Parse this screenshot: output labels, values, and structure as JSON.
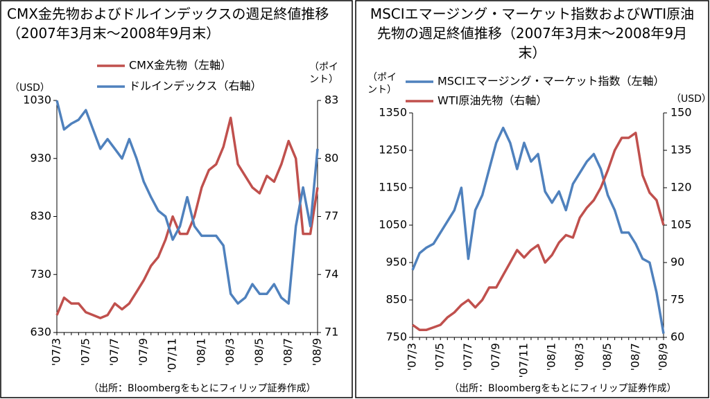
{
  "chart_data": [
    {
      "type": "line",
      "title": "CMX金先物およびドルインデックスの週足終値推移（2007年3月末～2008年9月末）",
      "y_label": "（USD）",
      "y2_label": "（ポイント）",
      "source": "（出所：Bloombergをもとにフィリップ証券作成）",
      "categories": [
        "'07/3",
        null,
        null,
        null,
        "'07/5",
        null,
        null,
        null,
        "'07/7",
        null,
        null,
        null,
        "'07/9",
        null,
        null,
        null,
        "'07/11",
        null,
        null,
        null,
        "'08/1",
        null,
        null,
        null,
        "'08/3",
        null,
        null,
        null,
        "'08/5",
        null,
        null,
        null,
        "'08/7",
        null,
        null,
        null,
        "'08/9"
      ],
      "series": [
        {
          "name": "CMX金先物（左軸）",
          "color": "#c0504d",
          "values": [
            660,
            690,
            680,
            680,
            665,
            660,
            655,
            660,
            680,
            670,
            680,
            700,
            720,
            745,
            760,
            790,
            830,
            800,
            800,
            830,
            880,
            910,
            920,
            950,
            1000,
            920,
            900,
            880,
            870,
            900,
            890,
            920,
            960,
            930,
            800,
            800,
            880
          ]
        },
        {
          "name": "ドルインデックス（右軸）",
          "color": "#4f81bd",
          "axis": "y2",
          "values": [
            83,
            81.5,
            81.8,
            82,
            82.5,
            81.5,
            80.5,
            81,
            80.5,
            80,
            81,
            80,
            78.8,
            78,
            77.3,
            77,
            75.8,
            76.5,
            78,
            76.5,
            76,
            76,
            76,
            75.5,
            73,
            72.5,
            72.8,
            73.5,
            73,
            73,
            73.5,
            72.8,
            72.5,
            76.5,
            78.5,
            76.5,
            80.5
          ]
        }
      ],
      "ylim": [
        630,
        1030
      ],
      "yticks": [
        630,
        730,
        830,
        930,
        1030
      ],
      "y2lim": [
        71,
        83
      ],
      "y2ticks": [
        71,
        74,
        77,
        80,
        83
      ]
    },
    {
      "type": "line",
      "title": "MSCIエマージング・マーケット指数およびWTI原油先物の週足終値推移（2007年3月末～2008年9月末）",
      "y_label": "（ポイント）",
      "y2_label": "（USD）",
      "source": "（出所：Bloombergをもとにフィリップ証券作成）",
      "categories": [
        "'07/3",
        null,
        null,
        null,
        "'07/5",
        null,
        null,
        null,
        "'07/7",
        null,
        null,
        null,
        "'07/9",
        null,
        null,
        null,
        "'07/11",
        null,
        null,
        null,
        "'08/1",
        null,
        null,
        null,
        "'08/3",
        null,
        null,
        null,
        "'08/5",
        null,
        null,
        null,
        "'08/7",
        null,
        null,
        null,
        "'08/9"
      ],
      "series": [
        {
          "name": "MSCIエマージング・マーケット指数（左軸）",
          "color": "#4f81bd",
          "values": [
            930,
            975,
            990,
            1000,
            1030,
            1060,
            1090,
            1150,
            960,
            1090,
            1130,
            1200,
            1270,
            1310,
            1270,
            1200,
            1270,
            1220,
            1240,
            1140,
            1110,
            1140,
            1090,
            1160,
            1190,
            1220,
            1240,
            1200,
            1130,
            1090,
            1030,
            1030,
            1000,
            960,
            950,
            870,
            760
          ]
        },
        {
          "name": "WTI原油先物（右軸）",
          "color": "#c0504d",
          "axis": "y2",
          "values": [
            65,
            63,
            63,
            64,
            65,
            68,
            70,
            73,
            75,
            72,
            75,
            80,
            80,
            85,
            90,
            95,
            92,
            95,
            97,
            90,
            93,
            98,
            101,
            100,
            108,
            112,
            115,
            120,
            127,
            135,
            140,
            140,
            142,
            125,
            118,
            115,
            105
          ]
        }
      ],
      "ylim": [
        750,
        1350
      ],
      "yticks": [
        750,
        850,
        950,
        1050,
        1150,
        1250,
        1350
      ],
      "y2lim": [
        60,
        150
      ],
      "y2ticks": [
        60,
        75,
        90,
        105,
        120,
        135,
        150
      ]
    }
  ]
}
